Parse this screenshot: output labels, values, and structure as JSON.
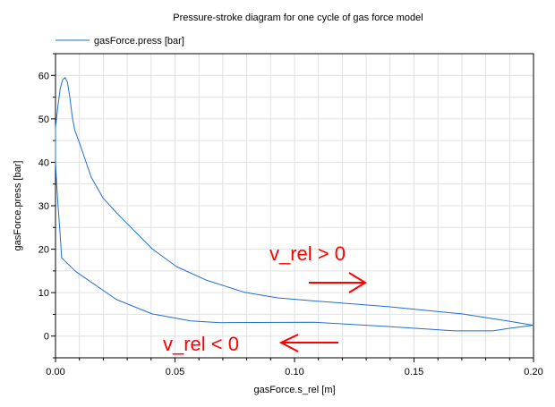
{
  "chart_data": {
    "type": "line",
    "title": "Pressure-stroke diagram for one cycle of gas force model",
    "xlabel": "gasForce.s_rel [m]",
    "ylabel": "gasForce.press [bar]",
    "xlim": [
      0,
      0.2
    ],
    "ylim": [
      -5,
      65
    ],
    "xticks": [
      "0.00",
      "0.05",
      "0.10",
      "0.15",
      "0.20"
    ],
    "xtick_values": [
      0,
      0.05,
      0.1,
      0.15,
      0.2
    ],
    "yticks": [
      "0",
      "10",
      "20",
      "30",
      "40",
      "50",
      "60"
    ],
    "ytick_values": [
      0,
      10,
      20,
      30,
      40,
      50,
      60
    ],
    "grid": true,
    "legend_position": "top-left",
    "series": [
      {
        "name": "gasForce.press [bar]",
        "color": "#1f6fd0",
        "x": [
          0,
          0.001,
          0.002,
          0.003,
          0.004,
          0.005,
          0.006,
          0.007,
          0.008,
          0.01,
          0.015,
          0.02,
          0.0255,
          0.0404,
          0.0506,
          0.063,
          0.079,
          0.093,
          0.108,
          0.139,
          0.17,
          0.189,
          0.2,
          0.19,
          0.183,
          0.167,
          0.139,
          0.108,
          0.069,
          0.0566,
          0.0404,
          0.0255,
          0.0086,
          0.0026,
          0.0018,
          0.001,
          0.0005,
          0
        ],
        "y": [
          48,
          53,
          57,
          59,
          59.5,
          58.5,
          55,
          50.5,
          47.5,
          44.5,
          36.5,
          31.7,
          28.4,
          20.1,
          16,
          12.9,
          10.1,
          8.8,
          8.1,
          6.8,
          5.1,
          3.5,
          2.5,
          1.8,
          1.2,
          1.2,
          2.2,
          3.2,
          3.1,
          3.5,
          5.1,
          8.4,
          14.8,
          18,
          24.5,
          30.4,
          35,
          40
        ]
      }
    ],
    "annotations": [
      {
        "text": "v_rel > 0",
        "color": "#ff0000",
        "arrow": "right"
      },
      {
        "text": "v_rel < 0",
        "color": "#ff0000",
        "arrow": "left"
      }
    ]
  }
}
